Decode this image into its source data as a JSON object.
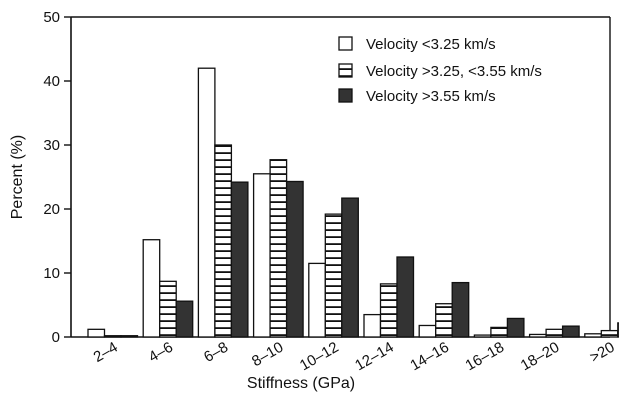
{
  "chart_data": {
    "type": "bar",
    "title": "",
    "xlabel": "Stiffness (GPa)",
    "ylabel": "Percent (%)",
    "ylim": [
      0,
      50
    ],
    "yticks": [
      0,
      10,
      20,
      30,
      40,
      50
    ],
    "grid": false,
    "legend_position": "top-right",
    "categories": [
      "2–4",
      "4–6",
      "6–8",
      "8–10",
      "10–12",
      "12–14",
      "14–16",
      "16–18",
      "18–20",
      ">20"
    ],
    "series": [
      {
        "name": "Velocity <3.25 km/s",
        "style": "white",
        "values": [
          1.2,
          15.2,
          42.0,
          25.5,
          11.5,
          3.5,
          1.8,
          0.3,
          0.4,
          0.5
        ]
      },
      {
        "name": "Velocity >3.25, <3.55 km/s",
        "style": "striped",
        "values": [
          0.2,
          8.7,
          30.0,
          27.7,
          19.2,
          8.3,
          5.2,
          1.5,
          1.2,
          1.0
        ]
      },
      {
        "name": "Velocity >3.55 km/s",
        "style": "dark",
        "values": [
          0.2,
          5.6,
          24.2,
          24.3,
          21.7,
          12.5,
          8.5,
          2.9,
          1.7,
          2.2
        ]
      }
    ]
  },
  "colors": {
    "ink": "#111111",
    "dark_fill": "#333333",
    "white_fill": "#ffffff"
  }
}
